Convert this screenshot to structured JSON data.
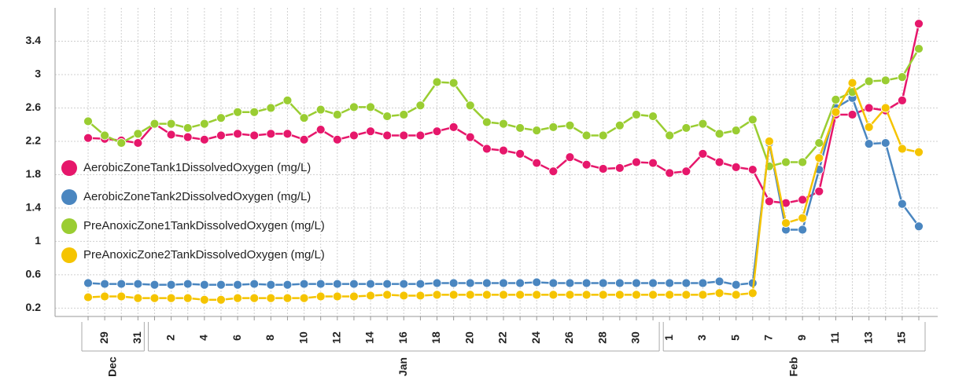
{
  "chart_data": {
    "type": "line",
    "categories": [
      null,
      "29",
      null,
      "31",
      null,
      "2",
      null,
      "4",
      null,
      "6",
      null,
      "8",
      null,
      "10",
      null,
      "12",
      null,
      "14",
      null,
      "16",
      null,
      "18",
      null,
      "20",
      null,
      "22",
      null,
      "24",
      null,
      "26",
      null,
      "28",
      null,
      "30",
      null,
      "1",
      null,
      "3",
      null,
      "5",
      null,
      "7",
      null,
      "9",
      null,
      "11",
      null,
      "13",
      null,
      "15",
      null
    ],
    "category_groups": [
      {
        "label": "Dec",
        "size": 4
      },
      {
        "label": "Jan",
        "size": 31
      },
      {
        "label": "Feb",
        "size": 16
      }
    ],
    "series": [
      {
        "name": "AerobicZoneTank1DissolvedOxygen (mg/L)",
        "color": "#e6176b",
        "values": [
          2.24,
          2.23,
          2.21,
          2.18,
          2.41,
          2.28,
          2.25,
          2.22,
          2.27,
          2.29,
          2.27,
          2.29,
          2.29,
          2.22,
          2.34,
          2.22,
          2.27,
          2.32,
          2.27,
          2.27,
          2.27,
          2.32,
          2.37,
          2.25,
          2.11,
          2.09,
          2.05,
          1.94,
          1.84,
          2.01,
          1.92,
          1.87,
          1.88,
          1.95,
          1.94,
          1.82,
          1.84,
          2.05,
          1.95,
          1.89,
          1.86,
          1.48,
          1.46,
          1.5,
          1.6,
          2.52,
          2.52,
          2.6,
          2.57,
          2.69,
          3.61
        ]
      },
      {
        "name": "AerobicZoneTank2DissolvedOxygen (mg/L)",
        "color": "#4a86c0",
        "values": [
          0.5,
          0.49,
          0.49,
          0.49,
          0.48,
          0.48,
          0.49,
          0.48,
          0.48,
          0.48,
          0.49,
          0.48,
          0.48,
          0.49,
          0.49,
          0.49,
          0.49,
          0.49,
          0.49,
          0.49,
          0.49,
          0.5,
          0.5,
          0.5,
          0.5,
          0.5,
          0.5,
          0.51,
          0.5,
          0.5,
          0.5,
          0.5,
          0.5,
          0.5,
          0.5,
          0.5,
          0.5,
          0.5,
          0.52,
          0.48,
          0.5,
          2.18,
          1.14,
          1.14,
          1.86,
          2.6,
          2.72,
          2.17,
          2.18,
          1.45,
          1.18
        ]
      },
      {
        "name": "PreAnoxicZone1TankDissolvedOxygen (mg/L)",
        "color": "#9acd32",
        "values": [
          2.44,
          2.27,
          2.18,
          2.29,
          2.41,
          2.41,
          2.36,
          2.41,
          2.48,
          2.55,
          2.55,
          2.6,
          2.69,
          2.48,
          2.58,
          2.52,
          2.61,
          2.61,
          2.5,
          2.52,
          2.63,
          2.91,
          2.9,
          2.63,
          2.43,
          2.41,
          2.36,
          2.33,
          2.37,
          2.39,
          2.27,
          2.27,
          2.39,
          2.52,
          2.5,
          2.27,
          2.36,
          2.41,
          2.29,
          2.33,
          2.46,
          1.9,
          1.95,
          1.95,
          2.18,
          2.7,
          2.79,
          2.92,
          2.93,
          2.97,
          3.31
        ]
      },
      {
        "name": "PreAnoxicZone2TankDissolvedOxygen (mg/L)",
        "color": "#f5c400",
        "values": [
          0.33,
          0.34,
          0.34,
          0.32,
          0.32,
          0.32,
          0.32,
          0.3,
          0.3,
          0.32,
          0.32,
          0.32,
          0.32,
          0.32,
          0.34,
          0.34,
          0.34,
          0.35,
          0.36,
          0.35,
          0.35,
          0.36,
          0.36,
          0.36,
          0.36,
          0.36,
          0.36,
          0.36,
          0.36,
          0.36,
          0.36,
          0.36,
          0.36,
          0.36,
          0.36,
          0.36,
          0.36,
          0.36,
          0.38,
          0.36,
          0.38,
          2.2,
          1.22,
          1.28,
          2.0,
          2.55,
          2.9,
          2.37,
          2.6,
          2.11,
          2.07
        ]
      }
    ],
    "ylim": [
      0.1,
      3.8
    ],
    "yticks": [
      0.2,
      0.6,
      1,
      1.4,
      1.8,
      2.2,
      2.6,
      3,
      3.4
    ],
    "grid": true,
    "legend": "left"
  }
}
